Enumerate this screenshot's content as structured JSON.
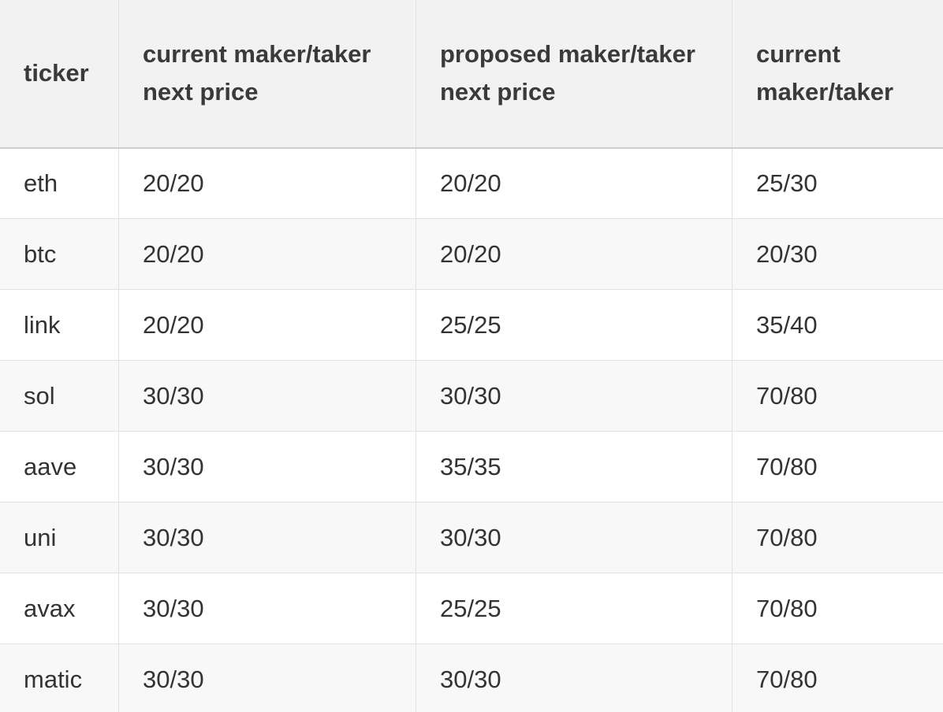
{
  "table": {
    "headers": [
      "ticker",
      "current maker/taker next price",
      "proposed maker/taker next price",
      "current maker/taker"
    ],
    "rows": [
      [
        "eth",
        "20/20",
        "20/20",
        "25/30"
      ],
      [
        "btc",
        "20/20",
        "20/20",
        "20/30"
      ],
      [
        "link",
        "20/20",
        "25/25",
        "35/40"
      ],
      [
        "sol",
        "30/30",
        "30/30",
        "70/80"
      ],
      [
        "aave",
        "30/30",
        "35/35",
        "70/80"
      ],
      [
        "uni",
        "30/30",
        "30/30",
        "70/80"
      ],
      [
        "avax",
        "30/30",
        "25/25",
        "70/80"
      ],
      [
        "matic",
        "30/30",
        "30/30",
        "70/80"
      ]
    ]
  },
  "colors": {
    "header_bg": "#f2f2f2",
    "row_alt_bg": "#f8f8f8",
    "border": "#e2e2e2",
    "text": "#333333"
  }
}
